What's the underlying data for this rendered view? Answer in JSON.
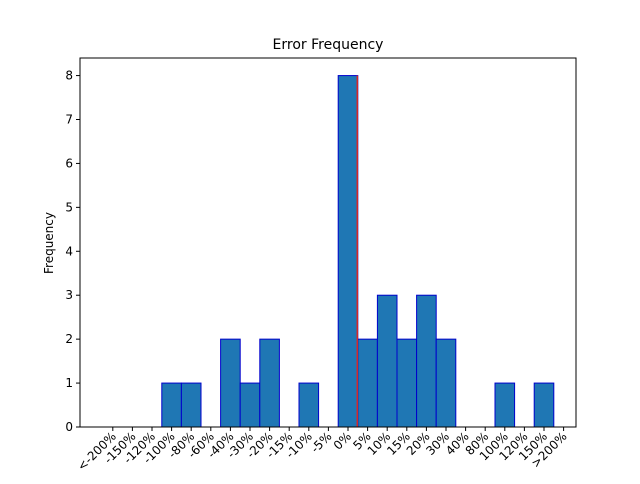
{
  "chart_data": {
    "type": "bar",
    "title": "Error Frequency",
    "xlabel": "",
    "ylabel": "Frequency",
    "ylim": [
      0,
      8.4
    ],
    "yticks": [
      0,
      1,
      2,
      3,
      4,
      5,
      6,
      7,
      8
    ],
    "categories": [
      "<-200%",
      "-150%",
      "-120%",
      "-100%",
      "-80%",
      "-60%",
      "-40%",
      "-30%",
      "-20%",
      "-15%",
      "-10%",
      "-5%",
      "0%",
      "5%",
      "10%",
      "15%",
      "20%",
      "30%",
      "40%",
      "80%",
      "100%",
      "120%",
      "150%",
      ">200%"
    ],
    "values": [
      0,
      0,
      0,
      1,
      1,
      0,
      2,
      1,
      2,
      0,
      1,
      0,
      8,
      2,
      3,
      2,
      3,
      2,
      0,
      0,
      1,
      0,
      1,
      0
    ],
    "reference_line": {
      "category": "0%",
      "color": "#d62728"
    },
    "grid": false,
    "legend": "none",
    "colors": {
      "bar_fill": "#1f77b4",
      "bar_edge": "#0000cc",
      "reference": "#d62728"
    }
  }
}
